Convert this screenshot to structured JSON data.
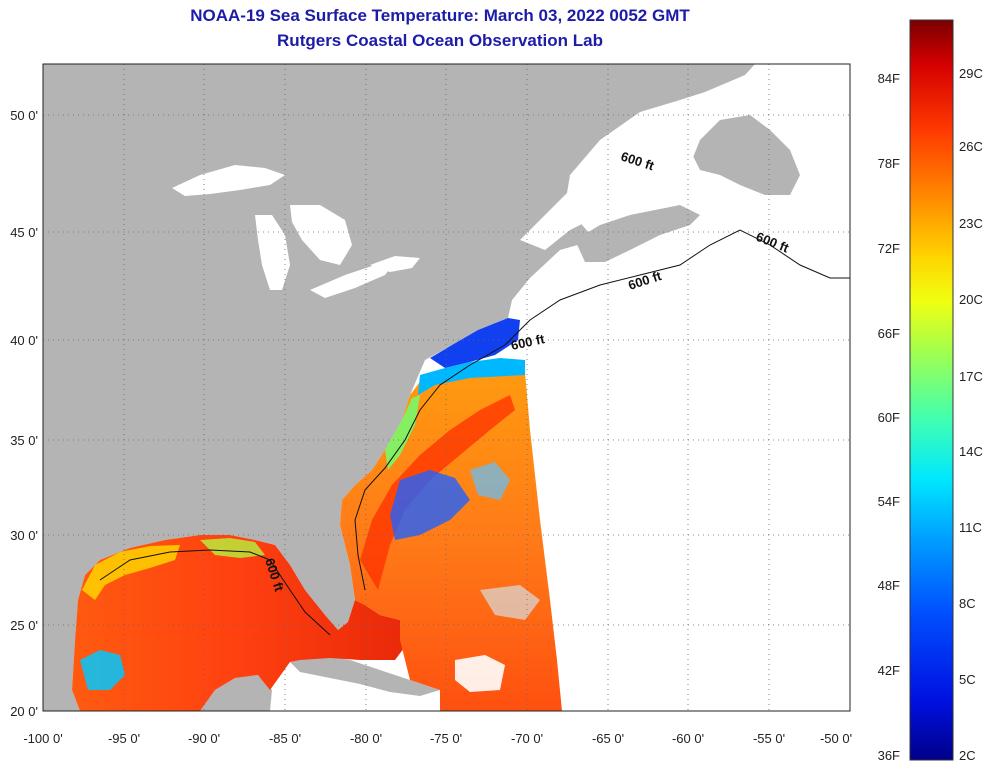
{
  "title": "NOAA-19 Sea Surface Temperature:  March 03, 2022 0052 GMT",
  "subtitle": "Rutgers Coastal Ocean Observation Lab",
  "lat_labels": [
    "50 0'",
    "45 0'",
    "40 0'",
    "35 0'",
    "30 0'",
    "25 0'",
    "20 0'"
  ],
  "lon_labels": [
    "-100 0'",
    "-95 0'",
    "-90 0'",
    "-85 0'",
    "-80 0'",
    "-75 0'",
    "-70 0'",
    "-65 0'",
    "-60 0'",
    "-55 0'",
    "-50 0'"
  ],
  "isobath_label": "600 ft",
  "colorbar": {
    "fahrenheit": [
      "84F",
      "78F",
      "72F",
      "66F",
      "60F",
      "54F",
      "48F",
      "42F",
      "36F"
    ],
    "celsius": [
      "29C",
      "26C",
      "23C",
      "20C",
      "17C",
      "14C",
      "11C",
      "8C",
      "5C",
      "2C"
    ],
    "colors": [
      "#7a0000",
      "#d40000",
      "#ff3a00",
      "#ff8a00",
      "#ffd400",
      "#f0ff10",
      "#a0ff50",
      "#40ffb0",
      "#00e8ff",
      "#00a0ff",
      "#0050ff",
      "#0010e0",
      "#00008a"
    ]
  },
  "colors": {
    "land": "#b4b4b4",
    "title": "#1c1ca8",
    "ocean_no_data": "#ffffff"
  }
}
